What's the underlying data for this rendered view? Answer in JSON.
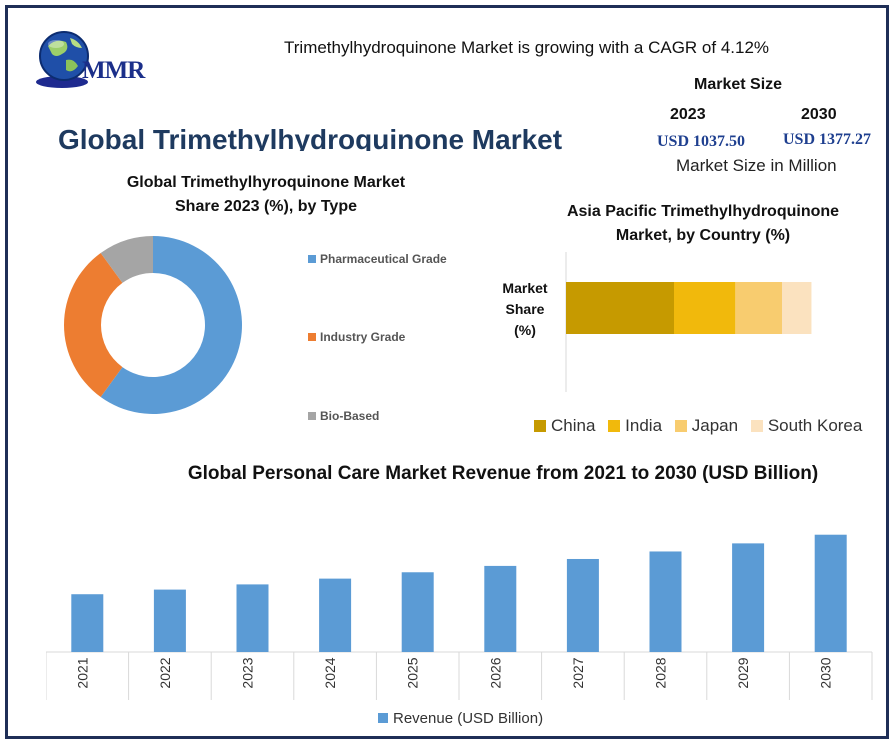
{
  "brand": {
    "logo_text": "MMR"
  },
  "header": {
    "headline": "Trimethylhydroquinone Market is growing with a CAGR of 4.12%",
    "main_title": "Global Trimethylhydroquinone Market"
  },
  "market_size": {
    "heading": "Market Size",
    "year_2023": "2023",
    "year_2030": "2030",
    "value_2023": "USD 1037.50",
    "value_2030": "USD 1377.27",
    "unit": "Market Size in Million"
  },
  "colors": {
    "blue": "#5b9bd5",
    "orange": "#ed7d31",
    "gray": "#a5a5a5",
    "china": "#c69a00",
    "india": "#f1b90c",
    "japan": "#f8cc6f",
    "south_korea": "#fbe2bf",
    "title_navy": "#1e3a5f"
  },
  "chart_data": [
    {
      "type": "pie",
      "title": "Global Trimethylhyroquinone Market Share 2023 (%), by Type",
      "title_line1": "Global Trimethylhyroquinone Market",
      "title_line2": "Share 2023 (%), by Type",
      "categories": [
        "Pharmaceutical Grade",
        "Industry Grade",
        "Bio-Based"
      ],
      "values": [
        60,
        30,
        10
      ],
      "colors": [
        "#5b9bd5",
        "#ed7d31",
        "#a5a5a5"
      ],
      "donut": true,
      "legend": "right"
    },
    {
      "type": "bar",
      "orientation": "horizontal-stacked",
      "title": "Asia Pacific Trimethylhydroquinone Market, by Country (%)",
      "title_line1": "Asia Pacific Trimethylhydroquinone",
      "title_line2": "Market, by Country (%)",
      "category_label_lines": [
        "Market",
        "Share",
        "(%)"
      ],
      "series": [
        {
          "name": "China",
          "values": [
            44
          ]
        },
        {
          "name": "India",
          "values": [
            25
          ]
        },
        {
          "name": "Japan",
          "values": [
            19
          ]
        },
        {
          "name": "South Korea",
          "values": [
            12
          ]
        }
      ],
      "colors": [
        "#c69a00",
        "#f1b90c",
        "#f8cc6f",
        "#fbe2bf"
      ],
      "xlim": [
        0,
        110
      ],
      "legend": "bottom"
    },
    {
      "type": "bar",
      "title": "Global Personal Care Market Revenue from 2021 to 2030 (USD Billion)",
      "categories": [
        "2021",
        "2022",
        "2023",
        "2024",
        "2025",
        "2026",
        "2027",
        "2028",
        "2029",
        "2030"
      ],
      "series": [
        {
          "name": "Revenue (USD Billion)",
          "values": [
            500,
            540,
            585,
            635,
            690,
            745,
            805,
            870,
            940,
            1015
          ]
        }
      ],
      "ylim": [
        0,
        1125
      ],
      "legend": "bottom"
    }
  ]
}
